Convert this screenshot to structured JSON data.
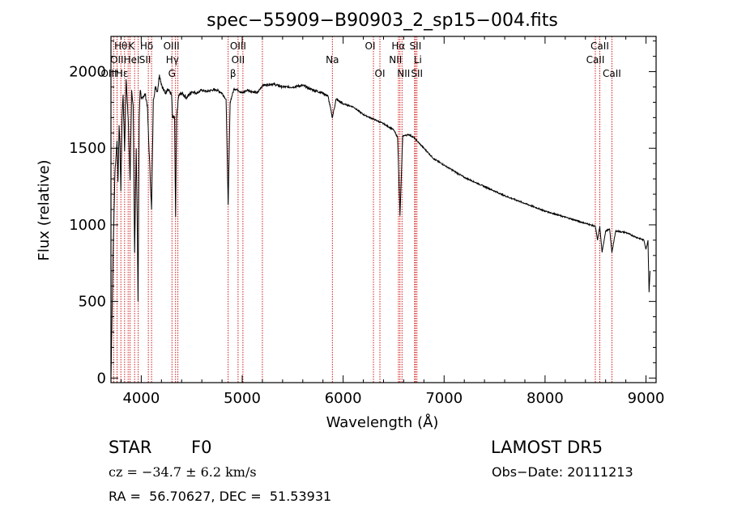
{
  "chart_data": {
    "type": "line",
    "title": "spec−55909−B90903_2_sp15−004.fits",
    "xlabel": "Wavelength (Å)",
    "ylabel": "Flux (relative)",
    "xlim": [
      3700,
      9100
    ],
    "ylim": [
      -30,
      2230
    ],
    "xticks": [
      4000,
      5000,
      6000,
      7000,
      8000,
      9000
    ],
    "yticks": [
      0,
      500,
      1000,
      1500,
      2000
    ],
    "grid": false,
    "series": [
      {
        "x": [
          3700,
          3720,
          3740,
          3760,
          3770,
          3780,
          3790,
          3798,
          3810,
          3820,
          3835,
          3850,
          3870,
          3889,
          3905,
          3920,
          3934,
          3950,
          3960,
          3968,
          3980,
          3990,
          4000,
          4020,
          4040,
          4060,
          4080,
          4102,
          4120,
          4140,
          4160,
          4180,
          4200,
          4220,
          4240,
          4260,
          4280,
          4300,
          4310,
          4330,
          4340,
          4350,
          4370,
          4400,
          4450,
          4500,
          4550,
          4600,
          4650,
          4700,
          4750,
          4800,
          4840,
          4861,
          4880,
          4920,
          4960,
          5000,
          5050,
          5100,
          5150,
          5200,
          5300,
          5400,
          5500,
          5600,
          5700,
          5800,
          5850,
          5893,
          5930,
          6000,
          6100,
          6200,
          6300,
          6400,
          6500,
          6540,
          6563,
          6590,
          6650,
          6700,
          6800,
          6900,
          7000,
          7200,
          7400,
          7600,
          7800,
          8000,
          8200,
          8400,
          8498,
          8520,
          8542,
          8565,
          8600,
          8640,
          8662,
          8700,
          8800,
          8900,
          8980,
          9000,
          9020,
          9030,
          9040
        ],
        "y": [
          0,
          780,
          1350,
          1550,
          1280,
          1650,
          1500,
          1220,
          1700,
          1850,
          1480,
          1950,
          1700,
          1290,
          1880,
          1780,
          820,
          1500,
          1050,
          500,
          1700,
          1880,
          1820,
          1840,
          1850,
          1780,
          1450,
          1100,
          1820,
          1900,
          1870,
          1980,
          1920,
          1880,
          1860,
          1890,
          1870,
          1850,
          1700,
          1700,
          1050,
          1700,
          1840,
          1860,
          1830,
          1870,
          1860,
          1880,
          1870,
          1880,
          1880,
          1860,
          1820,
          1130,
          1800,
          1890,
          1880,
          1860,
          1880,
          1870,
          1860,
          1910,
          1920,
          1900,
          1900,
          1910,
          1880,
          1860,
          1840,
          1700,
          1820,
          1790,
          1770,
          1720,
          1690,
          1660,
          1620,
          1570,
          1060,
          1580,
          1590,
          1570,
          1500,
          1430,
          1390,
          1310,
          1250,
          1190,
          1140,
          1090,
          1050,
          1010,
          990,
          900,
          990,
          820,
          960,
          970,
          820,
          960,
          950,
          920,
          900,
          840,
          900,
          560,
          700
        ]
      }
    ],
    "line_labels": [
      {
        "text": "Hθ",
        "wl": 3798,
        "row": 0,
        "offset": 0
      },
      {
        "text": "K",
        "wl": 3934,
        "row": 0,
        "offset": -4
      },
      {
        "text": "Hδ",
        "wl": 4102,
        "row": 0,
        "offset": -6
      },
      {
        "text": "OIII",
        "wl": 4363,
        "row": 0,
        "offset": -8
      },
      {
        "text": "OIII",
        "wl": 4959,
        "row": 0,
        "offset": 0
      },
      {
        "text": "OI",
        "wl": 6300,
        "row": 0,
        "offset": -4
      },
      {
        "text": "Hα",
        "wl": 6563,
        "row": 0,
        "offset": -2
      },
      {
        "text": "SII",
        "wl": 6716,
        "row": 0,
        "offset": 0
      },
      {
        "text": "CaII",
        "wl": 8542,
        "row": 0,
        "offset": 0
      },
      {
        "text": "OII",
        "wl": 3727,
        "row": 1,
        "offset": 4
      },
      {
        "text": "HeI",
        "wl": 3889,
        "row": 1,
        "offset": 2
      },
      {
        "text": "SII",
        "wl": 4070,
        "row": 1,
        "offset": -4
      },
      {
        "text": "Hγ",
        "wl": 4340,
        "row": 1,
        "offset": -4
      },
      {
        "text": "OII",
        "wl": 4959,
        "row": 1,
        "offset": 0
      },
      {
        "text": "Na",
        "wl": 5893,
        "row": 1,
        "offset": 0
      },
      {
        "text": "NII",
        "wl": 6583,
        "row": 1,
        "offset": -8
      },
      {
        "text": "Li",
        "wl": 6708,
        "row": 1,
        "offset": 4
      },
      {
        "text": "CaII",
        "wl": 8498,
        "row": 1,
        "offset": 0
      },
      {
        "text": "OIII",
        "wl": 3760,
        "row": 2,
        "offset": -10
      },
      {
        "text": "Hε",
        "wl": 3970,
        "row": 2,
        "offset": -20
      },
      {
        "text": "G",
        "wl": 4304,
        "row": 2,
        "offset": 0
      },
      {
        "text": "β",
        "wl": 4861,
        "row": 2,
        "offset": 6
      },
      {
        "text": "OI",
        "wl": 6364,
        "row": 2,
        "offset": 0
      },
      {
        "text": "NII",
        "wl": 6583,
        "row": 2,
        "offset": 2
      },
      {
        "text": "SII",
        "wl": 6731,
        "row": 2,
        "offset": 0
      },
      {
        "text": "CaII",
        "wl": 8662,
        "row": 2,
        "offset": 0
      }
    ],
    "marker_lines": [
      3727,
      3760,
      3798,
      3835,
      3870,
      3889,
      3934,
      3970,
      4070,
      4102,
      4304,
      4340,
      4363,
      4861,
      4959,
      5007,
      5200,
      5893,
      6300,
      6364,
      6548,
      6563,
      6583,
      6708,
      6716,
      6731,
      8498,
      8542,
      8662
    ],
    "colors": {
      "spectrum": "#000000",
      "marker": "#cc0000",
      "axes": "#000000"
    }
  },
  "info": {
    "object_class": "STAR",
    "subclass": "F0",
    "survey": "LAMOST DR5",
    "velocity_line": "cz = −34.7 ± 6.2 km/s",
    "obs_date_line": "Obs−Date: 20111213",
    "coords_line": "RA =  56.70627, DEC =  51.53931"
  }
}
